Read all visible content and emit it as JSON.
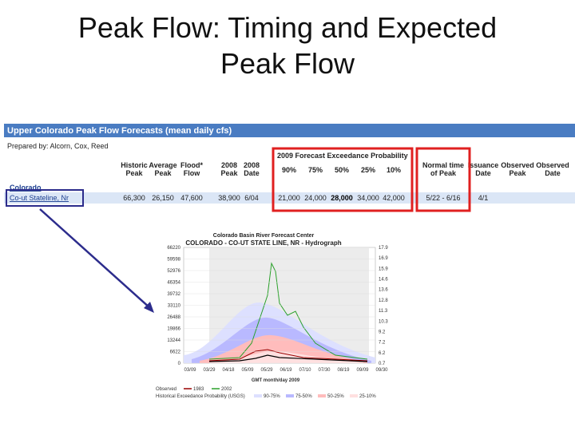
{
  "slide": {
    "title_line1": "Peak Flow: Timing and Expected",
    "title_line2": "Peak Flow"
  },
  "table": {
    "banner": "Upper Colorado Peak Flow Forecasts (mean daily cfs)",
    "prepared_by": "Prepared by: Alcorn, Cox, Reed",
    "group_header": "2009 Forecast Exceedance Probability",
    "headers": [
      [
        "Historic",
        "Peak"
      ],
      [
        "Average",
        "Peak"
      ],
      [
        "Flood*",
        "Flow"
      ],
      [
        "2008",
        "Peak"
      ],
      [
        "2008",
        "Date"
      ],
      [
        "90%"
      ],
      [
        "75%"
      ],
      [
        "50%"
      ],
      [
        "25%"
      ],
      [
        "10%"
      ],
      [
        "Normal time",
        "of Peak"
      ],
      [
        "Issuance",
        "Date"
      ],
      [
        "Observed",
        "Peak"
      ],
      [
        "Observed",
        "Date"
      ]
    ],
    "section": "Colorado",
    "station": "Co-ut Stateline, Nr",
    "row": [
      "66,300",
      "26,150",
      "47,600",
      "38,900",
      "6/04",
      "21,000",
      "24,000",
      "28,000",
      "34,000",
      "42,000",
      "5/22 - 6/16",
      "4/1"
    ]
  },
  "hydrograph": {
    "agency": "Colorado Basin River Forecast Center",
    "title": "COLORADO - CO-UT STATE LINE, NR - Hydrograph",
    "yticks": [
      "66220",
      "59598",
      "52976",
      "46354",
      "39732",
      "33110",
      "26488",
      "19866",
      "13244",
      "6622",
      "0"
    ],
    "y2ticks": [
      "17.9",
      "16.9",
      "15.9",
      "14.6",
      "13.6",
      "12.8",
      "11.3",
      "10.3",
      "9.2",
      "7.2",
      "6.2",
      "0.7"
    ],
    "xticks": [
      "03/09",
      "03/29",
      "04/18",
      "05/09",
      "05/29",
      "06/19",
      "07/10",
      "07/30",
      "08/19",
      "09/09",
      "09/30"
    ],
    "xlabel": "GMT month/day 2009",
    "legend1": [
      "Observed",
      "1983",
      "2002"
    ],
    "legend2": [
      "Historical Exceedance Probability (USGS)",
      "90-75%",
      "75-50%",
      "50-25%",
      "25-10%"
    ]
  }
}
